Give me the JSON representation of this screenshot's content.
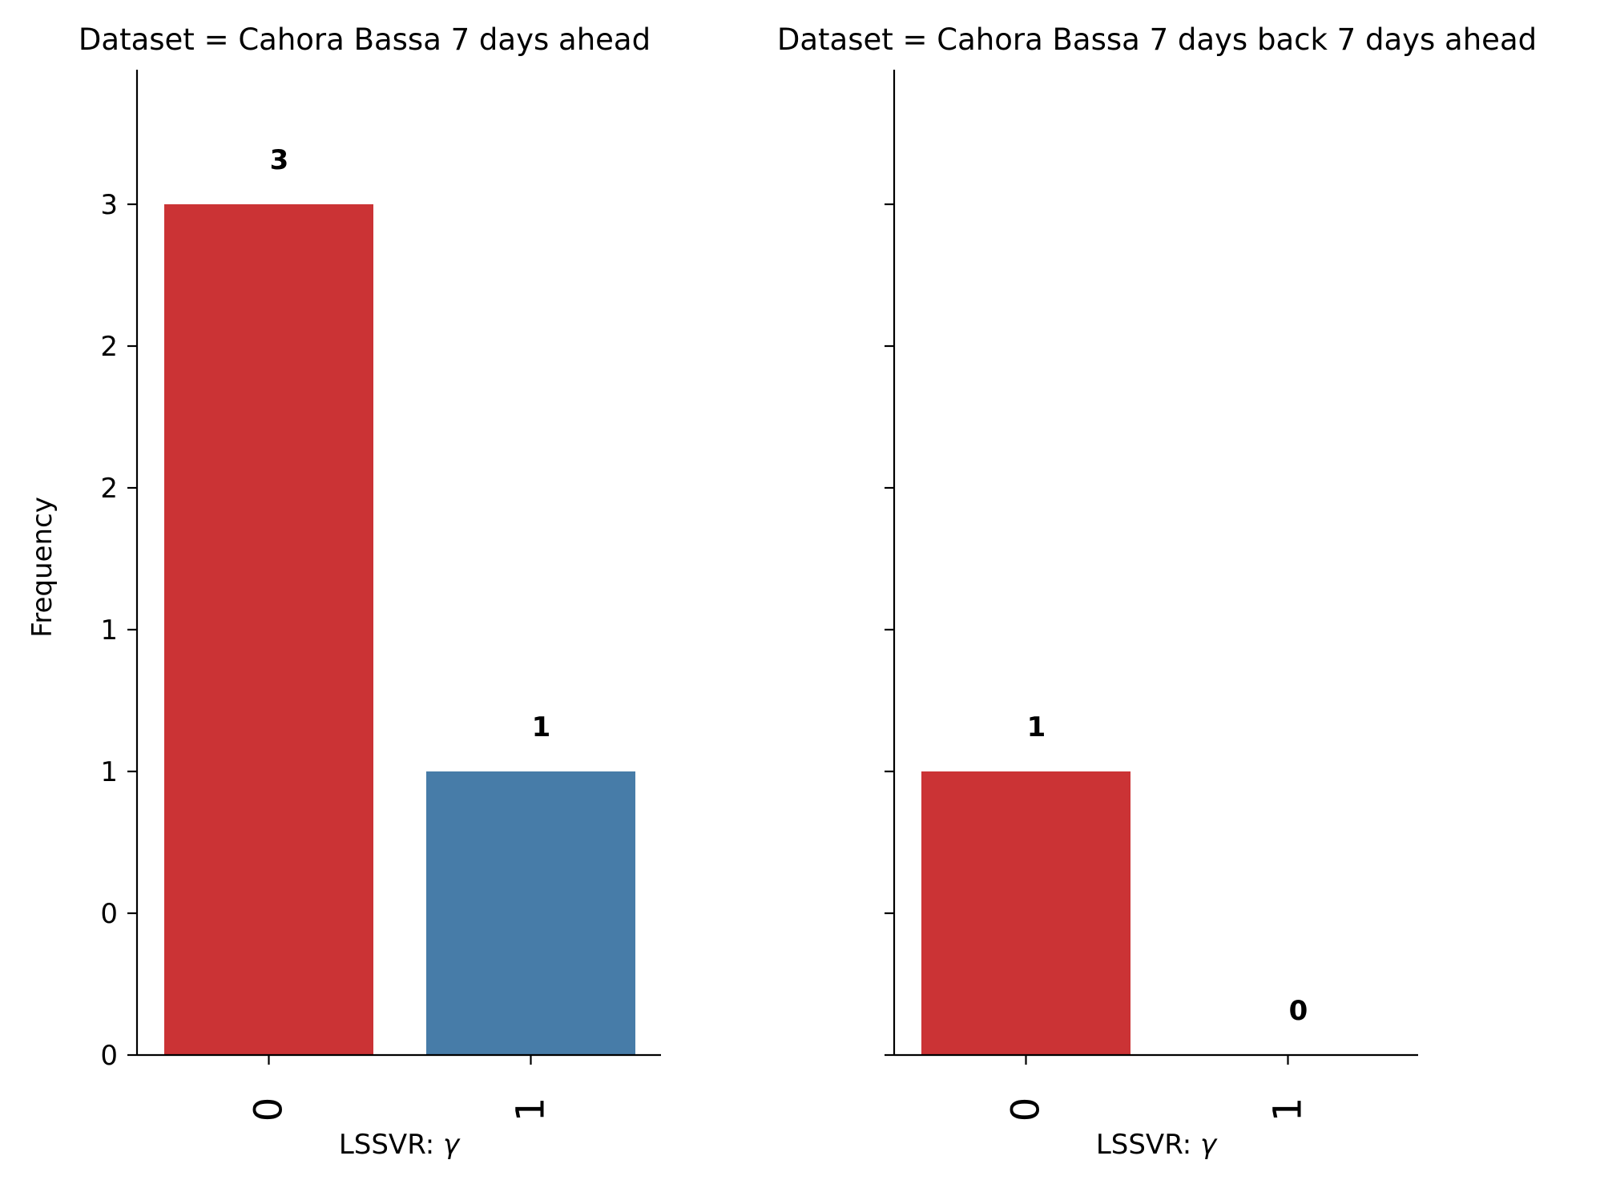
{
  "chart_data": [
    {
      "type": "bar",
      "title": "Dataset = Cahora Bassa 7 days ahead",
      "xlabel": "LSSVR: γ",
      "ylabel": "Frequency",
      "categories": [
        "0",
        "1"
      ],
      "values": [
        3,
        1
      ],
      "data_labels": [
        "3",
        "1"
      ],
      "colors": [
        "#cb3335",
        "#477ca8"
      ],
      "ytick_labels": [
        "0",
        "0",
        "1",
        "1",
        "2",
        "2",
        "3"
      ],
      "ylim": [
        0,
        3.5
      ],
      "grid": false
    },
    {
      "type": "bar",
      "title": "Dataset = Cahora Bassa 7 days back 7 days ahead",
      "xlabel": "LSSVR: γ",
      "ylabel": "",
      "categories": [
        "0",
        "1"
      ],
      "values": [
        1,
        0
      ],
      "data_labels": [
        "1",
        "0"
      ],
      "colors": [
        "#cb3335",
        "#477ca8"
      ],
      "ylim": [
        0,
        3.5
      ],
      "grid": false
    }
  ]
}
